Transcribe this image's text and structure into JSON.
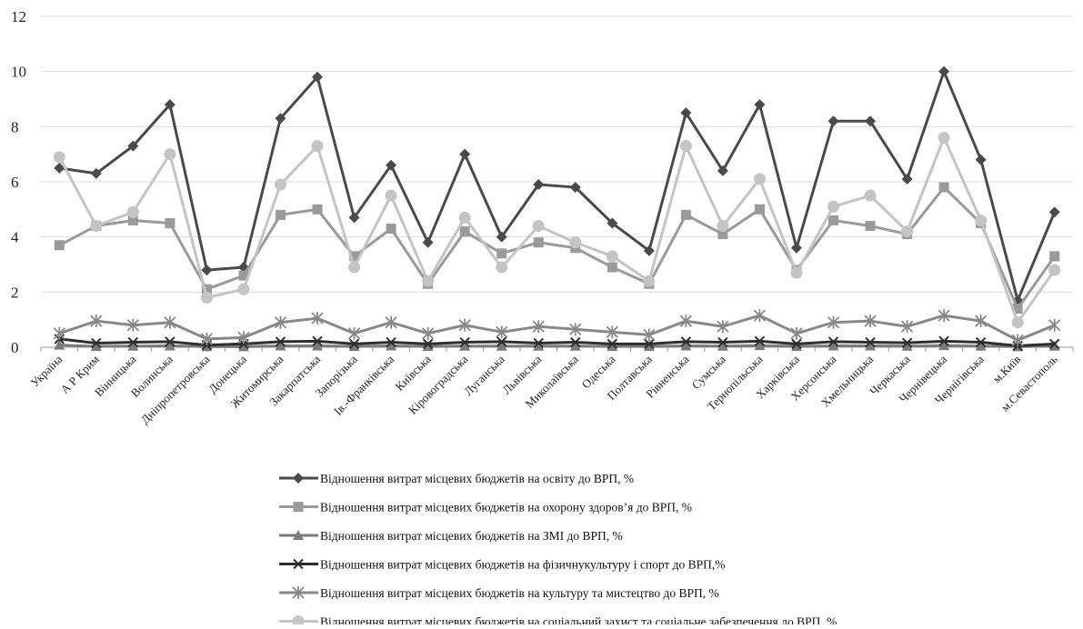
{
  "chart_data": {
    "type": "line",
    "title": "",
    "xlabel": "",
    "ylabel": "",
    "ylim": [
      0,
      12
    ],
    "yticks": [
      0,
      2,
      4,
      6,
      8,
      10,
      12
    ],
    "grid": "horizontal",
    "legend_position": "bottom",
    "categories": [
      "Україна",
      "А Р Крим",
      "Вінницька",
      "Волинська",
      "Дніпропетровська",
      "Донецька",
      "Житомирська",
      "Закарпатська",
      "Запорізька",
      "Ів.-Франківська",
      "Київська",
      "Кіровоградська",
      "Луганська",
      "Львівська",
      "Миколаївська",
      "Одеська",
      "Полтавська",
      "Рівненська",
      "Сумська",
      "Тернопільська",
      "Харківська",
      "Херсонська",
      "Хмельницька",
      "Черкаська",
      "Чернівецька",
      "Чернігівська",
      "м.Київ",
      "м.Севастополь"
    ],
    "series": [
      {
        "name": "Відношення витрат  місцевих бюджетів на освіту до ВРП, %",
        "color": "#4a4a4a",
        "marker": "diamond",
        "values": [
          6.5,
          6.3,
          7.3,
          8.8,
          2.8,
          2.9,
          8.3,
          9.8,
          4.7,
          6.6,
          3.8,
          7.0,
          4.0,
          5.9,
          5.8,
          4.5,
          3.5,
          8.5,
          6.4,
          8.8,
          3.6,
          8.2,
          8.2,
          6.1,
          10.0,
          6.8,
          1.7,
          4.9
        ]
      },
      {
        "name": "Відношення витрат  місцевих бюджетів на охорону здоров’я  до ВРП, %",
        "color": "#9a9a9a",
        "marker": "square",
        "values": [
          3.7,
          4.4,
          4.6,
          4.5,
          2.1,
          2.6,
          4.8,
          5.0,
          3.3,
          4.3,
          2.3,
          4.2,
          3.4,
          3.8,
          3.6,
          2.9,
          2.3,
          4.8,
          4.1,
          5.0,
          2.8,
          4.6,
          4.4,
          4.1,
          5.8,
          4.5,
          1.4,
          3.3
        ]
      },
      {
        "name": "Відношення витрат  місцевих бюджетів на ЗМІ до ВРП, %",
        "color": "#7a7a7a",
        "marker": "triangle",
        "values": [
          0.08,
          0.03,
          0.04,
          0.05,
          0.02,
          0.02,
          0.05,
          0.05,
          0.03,
          0.05,
          0.03,
          0.04,
          0.04,
          0.04,
          0.04,
          0.03,
          0.03,
          0.05,
          0.04,
          0.06,
          0.03,
          0.05,
          0.05,
          0.04,
          0.06,
          0.04,
          0.02,
          0.04
        ]
      },
      {
        "name": "Відношення витрат  місцевих бюджетів на фізичнукультуру  і спорт до ВРП,%",
        "color": "#2e2e2e",
        "marker": "x",
        "values": [
          0.3,
          0.15,
          0.18,
          0.2,
          0.08,
          0.12,
          0.2,
          0.22,
          0.12,
          0.18,
          0.12,
          0.18,
          0.2,
          0.15,
          0.18,
          0.12,
          0.12,
          0.2,
          0.18,
          0.22,
          0.12,
          0.2,
          0.18,
          0.16,
          0.22,
          0.18,
          0.05,
          0.12
        ]
      },
      {
        "name": "Відношення витрат  місцевих бюджетів на культуру  та мистецтво до ВРП, %",
        "color": "#888888",
        "marker": "star",
        "values": [
          0.5,
          0.95,
          0.8,
          0.9,
          0.3,
          0.35,
          0.9,
          1.05,
          0.5,
          0.9,
          0.5,
          0.8,
          0.55,
          0.75,
          0.65,
          0.55,
          0.45,
          0.95,
          0.75,
          1.15,
          0.5,
          0.9,
          0.95,
          0.75,
          1.15,
          0.95,
          0.25,
          0.8
        ]
      },
      {
        "name": "Відношення витрат  місцевих бюджетів на соціальний захист та соціальне забезпечення до ВРП, %",
        "color": "#c4c4c4",
        "marker": "circle",
        "values": [
          6.9,
          4.4,
          4.9,
          7.0,
          1.8,
          2.1,
          5.9,
          7.3,
          2.9,
          5.5,
          2.4,
          4.7,
          2.9,
          4.4,
          3.8,
          3.3,
          2.4,
          7.3,
          4.4,
          6.1,
          2.7,
          5.1,
          5.5,
          4.2,
          7.6,
          4.6,
          0.9,
          2.8
        ]
      }
    ]
  }
}
